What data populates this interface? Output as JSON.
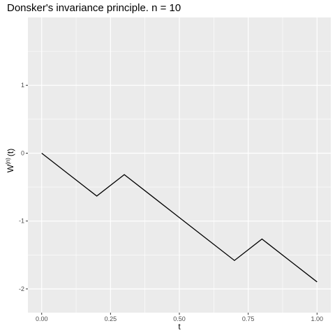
{
  "chart_data": {
    "type": "line",
    "title": "Donsker's invariance principle. n = 10",
    "xlabel": "t",
    "ylabel": {
      "base": "W",
      "superscript": "(n)",
      "suffix": "(t)"
    },
    "x": [
      0.0,
      0.1,
      0.2,
      0.3,
      0.4,
      0.5,
      0.6,
      0.7,
      0.8,
      0.9,
      1.0
    ],
    "y": [
      0.0,
      -0.316,
      -0.632,
      -0.316,
      -0.632,
      -0.949,
      -1.265,
      -1.581,
      -1.265,
      -1.581,
      -1.897
    ],
    "xlim": [
      -0.05,
      1.05
    ],
    "ylim": [
      -2.35,
      2.0
    ],
    "x_ticks": [
      0.0,
      0.25,
      0.5,
      0.75,
      1.0
    ],
    "x_tick_labels": [
      "0.00",
      "0.25",
      "0.50",
      "0.75",
      "1.00"
    ],
    "y_ticks": [
      1,
      0,
      -1,
      -2
    ],
    "y_tick_labels": [
      "1",
      "0",
      "-1",
      "-2"
    ],
    "grid": true,
    "colors": {
      "panel_background": "#ebebeb",
      "grid": "#ffffff",
      "line": "#000000"
    }
  }
}
